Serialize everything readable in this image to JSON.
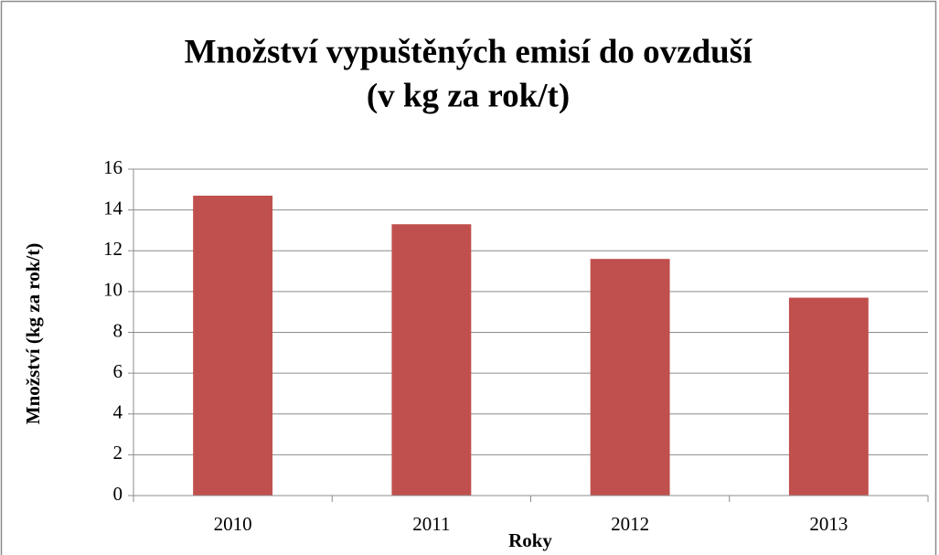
{
  "chart_data": {
    "type": "bar",
    "title": [
      "Množství vypuštěných emisí do ovzduší",
      "(v kg za rok/t)"
    ],
    "x_label": "Roky",
    "y_label": "Množství (kg za rok/t)",
    "categories": [
      "2010",
      "2011",
      "2012",
      "2013"
    ],
    "values": [
      14.7,
      13.3,
      11.6,
      9.7
    ],
    "color": "#c0504d",
    "ylim": [
      0,
      16
    ],
    "yticks": [
      0,
      2,
      4,
      6,
      8,
      10,
      12,
      14,
      16
    ],
    "grid": true
  }
}
